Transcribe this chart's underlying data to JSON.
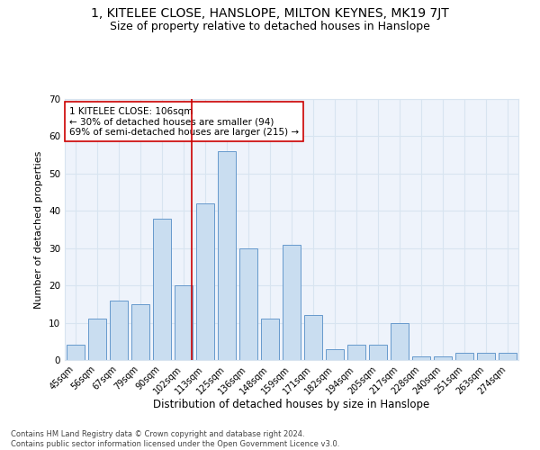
{
  "title": "1, KITELEE CLOSE, HANSLOPE, MILTON KEYNES, MK19 7JT",
  "subtitle": "Size of property relative to detached houses in Hanslope",
  "xlabel": "Distribution of detached houses by size in Hanslope",
  "ylabel": "Number of detached properties",
  "categories": [
    "45sqm",
    "56sqm",
    "67sqm",
    "79sqm",
    "90sqm",
    "102sqm",
    "113sqm",
    "125sqm",
    "136sqm",
    "148sqm",
    "159sqm",
    "171sqm",
    "182sqm",
    "194sqm",
    "205sqm",
    "217sqm",
    "228sqm",
    "240sqm",
    "251sqm",
    "263sqm",
    "274sqm"
  ],
  "values": [
    4,
    11,
    16,
    15,
    38,
    20,
    42,
    56,
    30,
    11,
    31,
    12,
    3,
    4,
    4,
    10,
    1,
    1,
    2,
    2,
    2
  ],
  "bar_color": "#c9ddf0",
  "bar_edgecolor": "#6699cc",
  "grid_color": "#d8e4f0",
  "bg_color": "#eef3fb",
  "annotation_line_color": "#cc0000",
  "annotation_box_text": "1 KITELEE CLOSE: 106sqm\n← 30% of detached houses are smaller (94)\n69% of semi-detached houses are larger (215) →",
  "annotation_box_edgecolor": "#cc0000",
  "footer_text": "Contains HM Land Registry data © Crown copyright and database right 2024.\nContains public sector information licensed under the Open Government Licence v3.0.",
  "ylim": [
    0,
    70
  ],
  "title_fontsize": 10,
  "subtitle_fontsize": 9,
  "tick_fontsize": 7,
  "ylabel_fontsize": 8,
  "xlabel_fontsize": 8.5,
  "annot_fontsize": 7.5,
  "footer_fontsize": 6
}
